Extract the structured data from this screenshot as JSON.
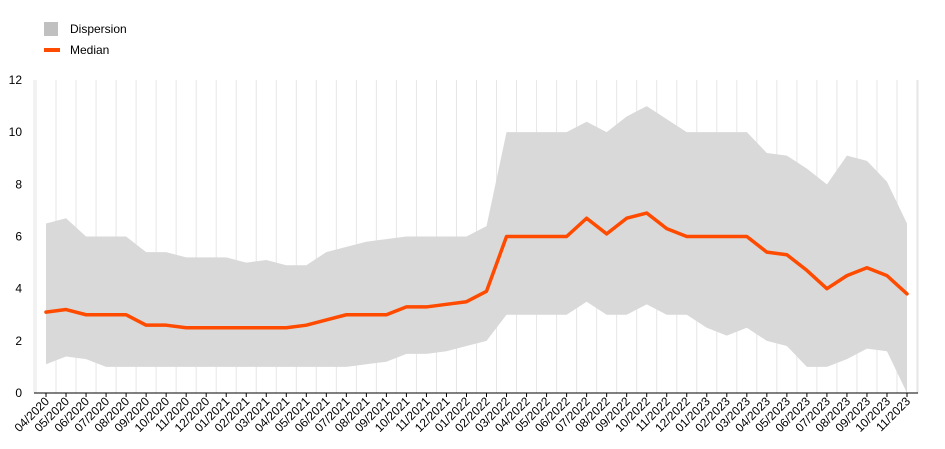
{
  "chart_data": {
    "type": "area",
    "title": "",
    "xlabel": "",
    "ylabel": "",
    "ylim": [
      0,
      12
    ],
    "yticks": [
      0,
      2,
      4,
      6,
      8,
      10,
      12
    ],
    "grid": "vertical",
    "legend_position": "top-left",
    "categories": [
      "04/2020",
      "05/2020",
      "06/2020",
      "07/2020",
      "08/2020",
      "09/2020",
      "10/2020",
      "11/2020",
      "12/2020",
      "01/2021",
      "02/2021",
      "03/2021",
      "04/2021",
      "05/2021",
      "06/2021",
      "07/2021",
      "08/2021",
      "09/2021",
      "10/2021",
      "11/2021",
      "12/2021",
      "01/2022",
      "02/2022",
      "03/2022",
      "04/2022",
      "05/2022",
      "06/2022",
      "07/2022",
      "08/2022",
      "09/2022",
      "10/2022",
      "11/2022",
      "12/2022",
      "01/2023",
      "02/2023",
      "03/2023",
      "04/2023",
      "05/2023",
      "06/2023",
      "07/2023",
      "08/2023",
      "09/2023",
      "10/2023",
      "11/2023"
    ],
    "series": [
      {
        "name": "Dispersion",
        "kind": "band",
        "color": "#d9d9d9",
        "legend_color": "#c0c0c0",
        "upper": [
          6.5,
          6.7,
          6.0,
          6.0,
          6.0,
          5.4,
          5.4,
          5.2,
          5.2,
          5.2,
          5.0,
          5.1,
          4.9,
          4.9,
          5.4,
          5.6,
          5.8,
          5.9,
          6.0,
          6.0,
          6.0,
          6.0,
          6.4,
          10.0,
          10.0,
          10.0,
          10.0,
          10.4,
          10.0,
          10.6,
          11.0,
          10.5,
          10.0,
          10.0,
          10.0,
          10.0,
          9.2,
          9.1,
          8.6,
          8.0,
          9.1,
          8.9,
          8.1,
          6.5
        ],
        "lower": [
          1.1,
          1.4,
          1.3,
          1.0,
          1.0,
          1.0,
          1.0,
          1.0,
          1.0,
          1.0,
          1.0,
          1.0,
          1.0,
          1.0,
          1.0,
          1.0,
          1.1,
          1.2,
          1.5,
          1.5,
          1.6,
          1.8,
          2.0,
          3.0,
          3.0,
          3.0,
          3.0,
          3.5,
          3.0,
          3.0,
          3.4,
          3.0,
          3.0,
          2.5,
          2.2,
          2.5,
          2.0,
          1.8,
          1.0,
          1.0,
          1.3,
          1.7,
          1.6,
          0.0
        ]
      },
      {
        "name": "Median",
        "kind": "line",
        "color": "#ff4b00",
        "values": [
          3.1,
          3.2,
          3.0,
          3.0,
          3.0,
          2.6,
          2.6,
          2.5,
          2.5,
          2.5,
          2.5,
          2.5,
          2.5,
          2.6,
          2.8,
          3.0,
          3.0,
          3.0,
          3.3,
          3.3,
          3.4,
          3.5,
          3.9,
          6.0,
          6.0,
          6.0,
          6.0,
          6.7,
          6.1,
          6.7,
          6.9,
          6.3,
          6.0,
          6.0,
          6.0,
          6.0,
          5.4,
          5.3,
          4.7,
          4.0,
          4.5,
          4.8,
          4.5,
          3.8
        ]
      }
    ]
  }
}
